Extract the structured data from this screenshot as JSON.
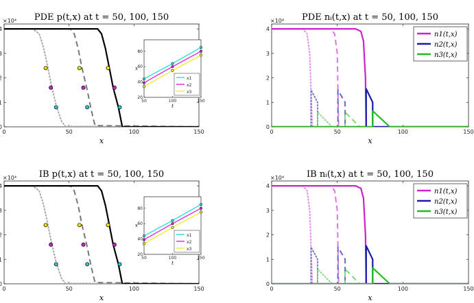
{
  "chart_data": [
    {
      "type": "line",
      "id": "pde-p",
      "title": "PDE p(t,x) at t = 50, 100, 150",
      "xlabel": "x",
      "ylabel": "",
      "y_multiplier": "×10⁴",
      "xlim": [
        0,
        150
      ],
      "ylim": [
        0,
        4.2
      ],
      "xticks": [
        0,
        50,
        100,
        150
      ],
      "yticks": [
        0,
        1,
        2,
        3,
        4
      ],
      "series": [
        {
          "name": "t=50",
          "color": "#aaaaaa",
          "style": "dotted",
          "x": [
            0,
            22,
            27,
            30,
            33,
            36,
            40,
            44,
            47,
            150
          ],
          "y": [
            4.0,
            4.0,
            3.8,
            3.3,
            2.6,
            1.8,
            0.9,
            0.25,
            0.02,
            0
          ]
        },
        {
          "name": "t=100",
          "color": "#777777",
          "style": "dashed",
          "x": [
            0,
            51,
            54,
            57,
            60,
            64,
            67,
            70,
            150
          ],
          "y": [
            4.0,
            4.0,
            3.8,
            3.2,
            2.4,
            1.5,
            0.7,
            0.05,
            0
          ]
        },
        {
          "name": "t=150",
          "color": "#000000",
          "style": "solid",
          "x": [
            0,
            72,
            75,
            78,
            81,
            84,
            88,
            91,
            150
          ],
          "y": [
            4.0,
            4.0,
            3.8,
            3.2,
            2.4,
            1.6,
            0.8,
            0.0,
            0
          ]
        }
      ],
      "markers": [
        {
          "x": 32,
          "y": 2.4,
          "color": "#f2e600"
        },
        {
          "x": 58,
          "y": 2.4,
          "color": "#f2e600"
        },
        {
          "x": 80,
          "y": 2.4,
          "color": "#f2e600"
        },
        {
          "x": 36,
          "y": 1.6,
          "color": "#cc22cc"
        },
        {
          "x": 61,
          "y": 1.6,
          "color": "#cc22cc"
        },
        {
          "x": 85,
          "y": 1.6,
          "color": "#cc22cc"
        },
        {
          "x": 40,
          "y": 0.8,
          "color": "#22cccc"
        },
        {
          "x": 64,
          "y": 0.8,
          "color": "#22cccc"
        },
        {
          "x": 89,
          "y": 0.8,
          "color": "#22cccc"
        }
      ],
      "inset": {
        "xlabel": "t",
        "ylabel": "x",
        "xlim": [
          50,
          150
        ],
        "ylim": [
          20,
          95
        ],
        "xticks": [
          50,
          100,
          150
        ],
        "yticks": [
          20,
          40,
          60,
          80
        ],
        "legend": [
          "x1",
          "x2",
          "x3"
        ],
        "series": [
          {
            "name": "x1",
            "color": "#22dddd",
            "x": [
              50,
              100,
              150
            ],
            "y": [
              44,
              64,
              85
            ]
          },
          {
            "name": "x2",
            "color": "#dd22dd",
            "x": [
              50,
              100,
              150
            ],
            "y": [
              39,
              60,
              80
            ]
          },
          {
            "name": "x3",
            "color": "#eeee22",
            "x": [
              50,
              100,
              150
            ],
            "y": [
              34,
              55,
              75
            ]
          }
        ]
      }
    },
    {
      "type": "line",
      "id": "pde-n",
      "title": "PDE nᵢ(t,x) at t = 50, 100, 150",
      "xlabel": "x",
      "ylabel": "",
      "y_multiplier": "×10⁴",
      "xlim": [
        0,
        150
      ],
      "ylim": [
        0,
        4.2
      ],
      "xticks": [
        0,
        50,
        100,
        150
      ],
      "yticks": [
        0,
        1,
        2,
        3,
        4
      ],
      "legend": [
        "n1(t,x)",
        "n2(t,x)",
        "n3(t,x)"
      ],
      "series": [
        {
          "name": "n1 t=50",
          "color": "#e58ee5",
          "style": "dotted",
          "x": [
            0,
            24,
            27,
            29,
            30,
            31,
            150
          ],
          "y": [
            4.0,
            4.0,
            3.8,
            3.0,
            1.5,
            0,
            0
          ]
        },
        {
          "name": "n2 t=50",
          "color": "#7777cc",
          "style": "dotted",
          "x": [
            0,
            30,
            30,
            35,
            35,
            150
          ],
          "y": [
            0,
            0,
            1.5,
            1.0,
            0,
            0
          ]
        },
        {
          "name": "n3 t=50",
          "color": "#88dd88",
          "style": "dotted",
          "x": [
            0,
            35,
            35,
            46,
            150
          ],
          "y": [
            0,
            0,
            0.6,
            0,
            0
          ]
        },
        {
          "name": "n1 t=100",
          "color": "#dd77dd",
          "style": "dashed",
          "x": [
            0,
            45,
            48,
            50,
            51,
            150
          ],
          "y": [
            4.0,
            4.0,
            3.8,
            3.0,
            0,
            0
          ]
        },
        {
          "name": "n2 t=100",
          "color": "#6666cc",
          "style": "dashed",
          "x": [
            0,
            50.5,
            50.5,
            56,
            56,
            150
          ],
          "y": [
            0,
            0,
            1.5,
            1.0,
            0,
            0
          ]
        },
        {
          "name": "n3 t=100",
          "color": "#77dd77",
          "style": "dashed",
          "x": [
            0,
            56,
            56,
            67,
            150
          ],
          "y": [
            0,
            0,
            0.6,
            0,
            0
          ]
        },
        {
          "name": "n1 t=150",
          "color": "#cc22cc",
          "style": "solid",
          "x": [
            0,
            64,
            68,
            70,
            71.5,
            72,
            150
          ],
          "y": [
            4.0,
            4.0,
            3.9,
            3.5,
            2.0,
            0,
            0
          ]
        },
        {
          "name": "n2 t=150",
          "color": "#1a1aaa",
          "style": "solid",
          "x": [
            0,
            72,
            72,
            77,
            77,
            150
          ],
          "y": [
            0,
            0,
            1.55,
            1.0,
            0,
            0
          ]
        },
        {
          "name": "n3 t=150",
          "color": "#22bb22",
          "style": "solid",
          "x": [
            0,
            77,
            77,
            90,
            150
          ],
          "y": [
            0,
            0,
            0.65,
            0,
            0
          ]
        }
      ]
    },
    {
      "type": "line",
      "id": "ib-p",
      "title": "IB p(t,x) at t = 50, 100, 150",
      "xlabel": "x",
      "ylabel": "",
      "y_multiplier": "×10⁴",
      "xlim": [
        0,
        150
      ],
      "ylim": [
        0,
        4.2
      ],
      "xticks": [
        0,
        50,
        100,
        150
      ],
      "yticks": [
        0,
        1,
        2,
        3,
        4
      ],
      "series": [
        {
          "name": "t=50",
          "color": "#aaaaaa",
          "style": "dotted",
          "x": [
            0,
            22,
            27,
            30,
            33,
            36,
            40,
            44,
            47,
            150
          ],
          "y": [
            4.0,
            4.0,
            3.8,
            3.3,
            2.6,
            1.8,
            0.9,
            0.25,
            0.02,
            0
          ]
        },
        {
          "name": "t=100",
          "color": "#777777",
          "style": "dashed",
          "x": [
            0,
            51,
            54,
            57,
            60,
            64,
            67,
            70,
            150
          ],
          "y": [
            4.0,
            4.0,
            3.8,
            3.2,
            2.4,
            1.5,
            0.7,
            0.05,
            0
          ]
        },
        {
          "name": "t=150",
          "color": "#000000",
          "style": "solid",
          "x": [
            0,
            72,
            75,
            78,
            81,
            84,
            88,
            91,
            150
          ],
          "y": [
            4.0,
            4.0,
            3.8,
            3.2,
            2.4,
            1.6,
            0.8,
            0.0,
            0
          ]
        }
      ],
      "markers": [
        {
          "x": 32,
          "y": 2.4,
          "color": "#f2e600"
        },
        {
          "x": 58,
          "y": 2.4,
          "color": "#f2e600"
        },
        {
          "x": 80,
          "y": 2.4,
          "color": "#f2e600"
        },
        {
          "x": 36,
          "y": 1.6,
          "color": "#cc22cc"
        },
        {
          "x": 61,
          "y": 1.6,
          "color": "#cc22cc"
        },
        {
          "x": 85,
          "y": 1.6,
          "color": "#cc22cc"
        },
        {
          "x": 40,
          "y": 0.8,
          "color": "#22cccc"
        },
        {
          "x": 64,
          "y": 0.8,
          "color": "#22cccc"
        },
        {
          "x": 89,
          "y": 0.8,
          "color": "#22cccc"
        }
      ],
      "inset": {
        "xlabel": "t",
        "ylabel": "x",
        "xlim": [
          50,
          150
        ],
        "ylim": [
          20,
          95
        ],
        "xticks": [
          50,
          100,
          150
        ],
        "yticks": [
          20,
          40,
          60,
          80
        ],
        "legend": [
          "x1",
          "x2",
          "x3"
        ],
        "series": [
          {
            "name": "x1",
            "color": "#22dddd",
            "x": [
              50,
              100,
              150
            ],
            "y": [
              44,
              64,
              85
            ]
          },
          {
            "name": "x2",
            "color": "#dd22dd",
            "x": [
              50,
              100,
              150
            ],
            "y": [
              39,
              60,
              80
            ]
          },
          {
            "name": "x3",
            "color": "#eeee22",
            "x": [
              50,
              100,
              150
            ],
            "y": [
              34,
              55,
              75
            ]
          }
        ]
      }
    },
    {
      "type": "line",
      "id": "ib-n",
      "title": "IB nᵢ(t,x) at t = 50, 100, 150",
      "xlabel": "x",
      "ylabel": "",
      "y_multiplier": "×10⁴",
      "xlim": [
        0,
        150
      ],
      "ylim": [
        0,
        4.2
      ],
      "xticks": [
        0,
        50,
        100,
        150
      ],
      "yticks": [
        0,
        1,
        2,
        3,
        4
      ],
      "legend": [
        "n1(t,x)",
        "n2(t,x)",
        "n3(t,x)"
      ],
      "series": [
        {
          "name": "n1 t=50",
          "color": "#e58ee5",
          "style": "dotted",
          "x": [
            0,
            24,
            27,
            29,
            30,
            31,
            150
          ],
          "y": [
            4.0,
            4.0,
            3.8,
            3.0,
            1.5,
            0,
            0
          ]
        },
        {
          "name": "n2 t=50",
          "color": "#7777cc",
          "style": "dotted",
          "x": [
            0,
            30,
            30,
            35,
            35,
            150
          ],
          "y": [
            0,
            0,
            1.5,
            1.0,
            0,
            0
          ]
        },
        {
          "name": "n3 t=50",
          "color": "#88dd88",
          "style": "dotted",
          "x": [
            0,
            35,
            35,
            46,
            150
          ],
          "y": [
            0,
            0,
            0.6,
            0,
            0
          ]
        },
        {
          "name": "n1 t=100",
          "color": "#dd77dd",
          "style": "dashed",
          "x": [
            0,
            45,
            48,
            50,
            51,
            150
          ],
          "y": [
            4.0,
            4.0,
            3.8,
            3.0,
            0,
            0
          ]
        },
        {
          "name": "n2 t=100",
          "color": "#6666cc",
          "style": "dashed",
          "x": [
            0,
            50.5,
            50.5,
            56,
            56,
            150
          ],
          "y": [
            0,
            0,
            1.5,
            1.0,
            0,
            0
          ]
        },
        {
          "name": "n3 t=100",
          "color": "#77dd77",
          "style": "dashed",
          "x": [
            0,
            56,
            56,
            67,
            150
          ],
          "y": [
            0,
            0,
            0.6,
            0,
            0
          ]
        },
        {
          "name": "n1 t=150",
          "color": "#cc22cc",
          "style": "solid",
          "x": [
            0,
            64,
            68,
            70,
            71.5,
            72,
            150
          ],
          "y": [
            4.0,
            4.0,
            3.9,
            3.5,
            2.0,
            0,
            0
          ]
        },
        {
          "name": "n2 t=150",
          "color": "#1a1aaa",
          "style": "solid",
          "x": [
            0,
            72,
            72,
            77,
            77,
            150
          ],
          "y": [
            0,
            0,
            1.55,
            1.0,
            0,
            0
          ]
        },
        {
          "name": "n3 t=150",
          "color": "#22bb22",
          "style": "solid",
          "x": [
            0,
            77,
            77,
            90,
            150
          ],
          "y": [
            0,
            0,
            0.65,
            0,
            0
          ]
        }
      ]
    }
  ]
}
